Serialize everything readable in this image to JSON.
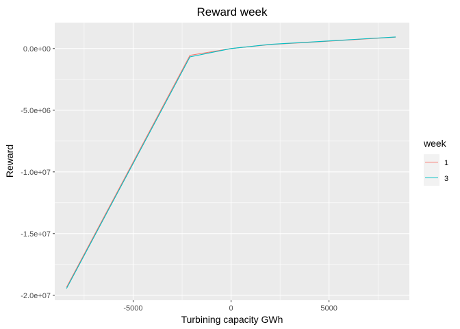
{
  "chart_data": {
    "type": "line",
    "title": "Reward week",
    "xlabel": "Turbining capacity GWh",
    "ylabel": "Reward",
    "xlim": [
      -9000,
      9100
    ],
    "ylim": [
      -20400000,
      2100000
    ],
    "x_ticks": [
      {
        "value": -5000,
        "label": "-5000"
      },
      {
        "value": 0,
        "label": "0"
      },
      {
        "value": 5000,
        "label": "5000"
      }
    ],
    "y_ticks": [
      {
        "value": 0,
        "label": "0.0e+00"
      },
      {
        "value": -5000000,
        "label": "-5.0e+06"
      },
      {
        "value": -10000000,
        "label": "-1.0e+07"
      },
      {
        "value": -15000000,
        "label": "-1.5e+07"
      },
      {
        "value": -20000000,
        "label": "-2.0e+07"
      }
    ],
    "grid": true,
    "legend": {
      "title": "week",
      "position": "right"
    },
    "series": [
      {
        "name": "1",
        "color": "#F8766D",
        "points": [
          {
            "x": -8400,
            "y": -19350000
          },
          {
            "x": -2100,
            "y": -550000
          },
          {
            "x": 0,
            "y": 0
          },
          {
            "x": 2000,
            "y": 320000
          },
          {
            "x": 4200,
            "y": 520000
          },
          {
            "x": 6300,
            "y": 720000
          },
          {
            "x": 8400,
            "y": 920000
          }
        ]
      },
      {
        "name": "3",
        "color": "#00BFC4",
        "points": [
          {
            "x": -8400,
            "y": -19450000
          },
          {
            "x": -2100,
            "y": -680000
          },
          {
            "x": 0,
            "y": 0
          },
          {
            "x": 2000,
            "y": 340000
          },
          {
            "x": 4200,
            "y": 540000
          },
          {
            "x": 6300,
            "y": 740000
          },
          {
            "x": 8400,
            "y": 940000
          }
        ]
      }
    ]
  }
}
